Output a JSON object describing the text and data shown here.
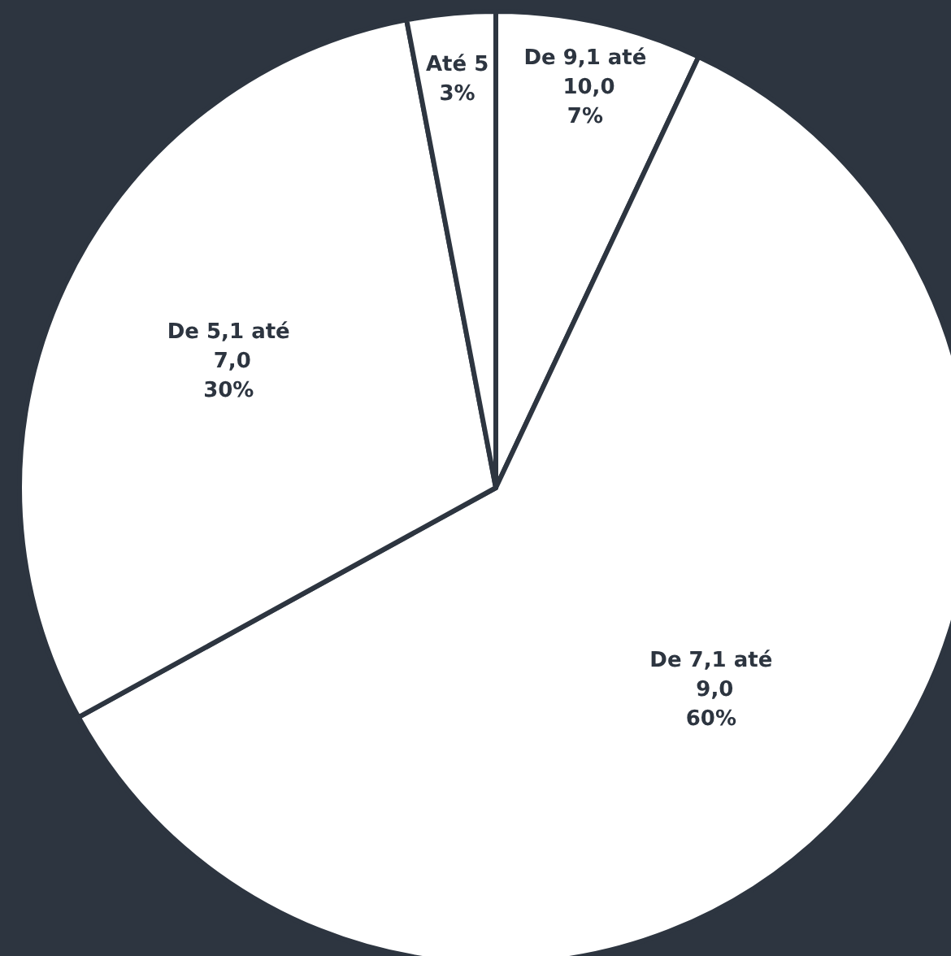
{
  "chart_data": {
    "type": "pie",
    "categories": [
      "De 9,1 até 10,0",
      "De 7,1 até 9,0",
      "De 5,1 até 7,0",
      "Até 5"
    ],
    "values": [
      7,
      60,
      30,
      3
    ],
    "value_labels": [
      "7%",
      "60%",
      "30%",
      "3%"
    ],
    "colors": [
      "#ffffff",
      "#ffffff",
      "#ffffff",
      "#ffffff"
    ],
    "legend": false
  }
}
